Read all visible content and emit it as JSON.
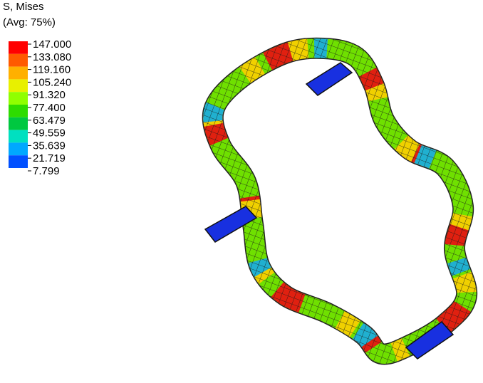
{
  "legend": {
    "title": "S, Mises",
    "subtitle": "(Avg: 75%)",
    "levels": [
      "147.000",
      "133.080",
      "119.160",
      "105.240",
      "91.320",
      "77.400",
      "63.479",
      "49.559",
      "35.639",
      "21.719",
      "7.799"
    ]
  }
}
